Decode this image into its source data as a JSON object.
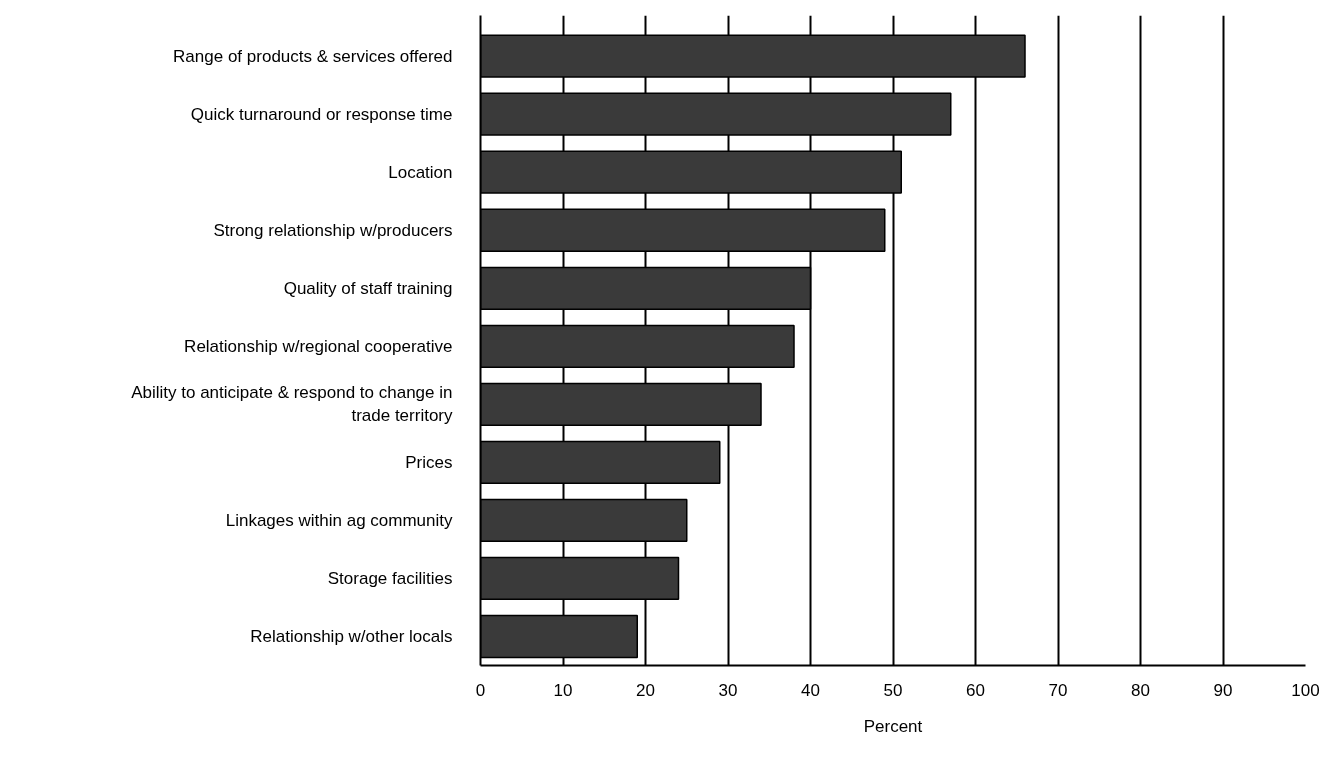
{
  "chart_data": {
    "type": "bar",
    "orientation": "horizontal",
    "xlabel": "Percent",
    "categories": [
      "Range of products & services offered",
      "Quick turnaround or response time",
      "Location",
      "Strong relationship w/producers",
      "Quality of staff training",
      "Relationship w/regional cooperative",
      "Ability to anticipate & respond to change in\ntrade territory",
      "Prices",
      "Linkages within ag community",
      "Storage facilities",
      "Relationship w/other locals"
    ],
    "values": [
      66,
      57,
      51,
      49,
      40,
      38,
      34,
      29,
      25,
      24,
      19
    ],
    "color": "#3a3a3a",
    "xlim": [
      0,
      100
    ],
    "xticks": [
      0,
      10,
      20,
      30,
      40,
      50,
      60,
      70,
      80,
      90,
      100
    ],
    "grid": "x"
  }
}
